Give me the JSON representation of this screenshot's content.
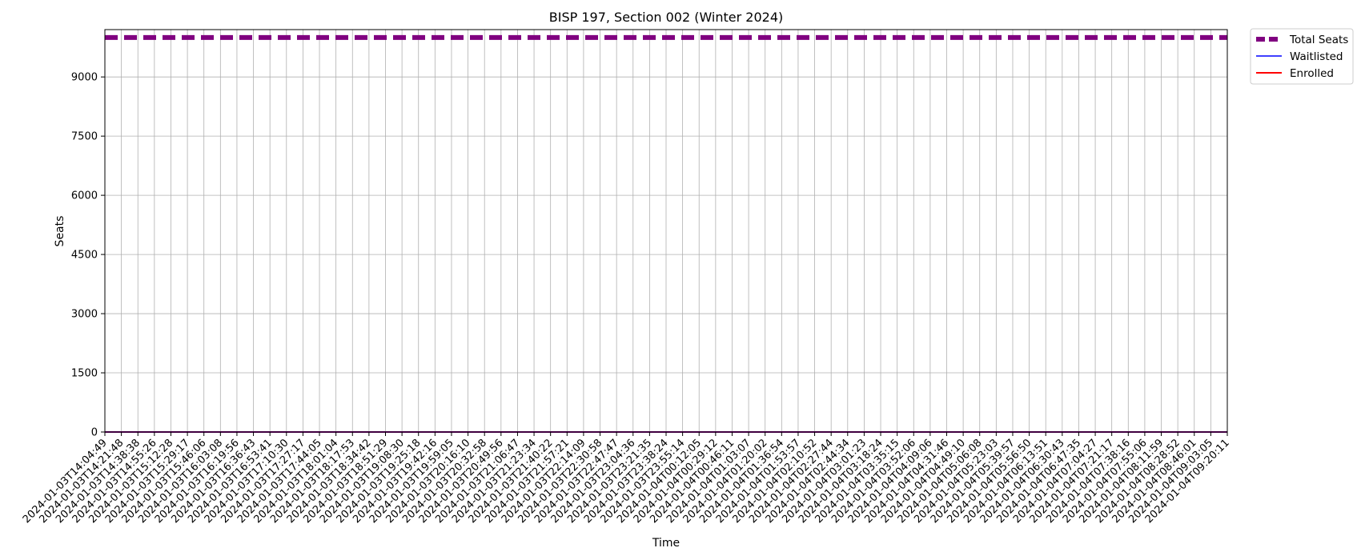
{
  "chart_data": {
    "type": "line",
    "title": "BISP 197, Section 002 (Winter 2024)",
    "xlabel": "Time",
    "ylabel": "Seats",
    "ylim": [
      0,
      10200
    ],
    "yticks": [
      0,
      1500,
      3000,
      4500,
      6000,
      7500,
      9000
    ],
    "grid": true,
    "legend_position": "outside-top-right",
    "x": [
      "2024-01-03T14:04:49",
      "2024-01-03T14:21:48",
      "2024-01-03T14:38:38",
      "2024-01-03T14:55:26",
      "2024-01-03T15:12:28",
      "2024-01-03T15:29:17",
      "2024-01-03T15:46:06",
      "2024-01-03T16:03:08",
      "2024-01-03T16:19:56",
      "2024-01-03T16:36:43",
      "2024-01-03T16:53:41",
      "2024-01-03T17:10:30",
      "2024-01-03T17:27:17",
      "2024-01-03T17:44:05",
      "2024-01-03T18:01:04",
      "2024-01-03T18:17:53",
      "2024-01-03T18:34:42",
      "2024-01-03T18:51:29",
      "2024-01-03T19:08:30",
      "2024-01-03T19:25:18",
      "2024-01-03T19:42:16",
      "2024-01-03T19:59:05",
      "2024-01-03T20:16:10",
      "2024-01-03T20:32:58",
      "2024-01-03T20:49:56",
      "2024-01-03T21:06:47",
      "2024-01-03T21:23:34",
      "2024-01-03T21:40:22",
      "2024-01-03T21:57:21",
      "2024-01-03T22:14:09",
      "2024-01-03T22:30:58",
      "2024-01-03T22:47:47",
      "2024-01-03T23:04:36",
      "2024-01-03T23:21:35",
      "2024-01-03T23:38:24",
      "2024-01-03T23:55:14",
      "2024-01-04T00:12:05",
      "2024-01-04T00:29:12",
      "2024-01-04T00:46:11",
      "2024-01-04T01:03:07",
      "2024-01-04T01:20:02",
      "2024-01-04T01:36:54",
      "2024-01-04T01:53:57",
      "2024-01-04T02:10:52",
      "2024-01-04T02:27:44",
      "2024-01-04T02:44:34",
      "2024-01-04T03:01:23",
      "2024-01-04T03:18:24",
      "2024-01-04T03:35:15",
      "2024-01-04T03:52:06",
      "2024-01-04T04:09:06",
      "2024-01-04T04:31:46",
      "2024-01-04T04:49:10",
      "2024-01-04T05:06:08",
      "2024-01-04T05:23:03",
      "2024-01-04T05:39:57",
      "2024-01-04T05:56:50",
      "2024-01-04T06:13:51",
      "2024-01-04T06:30:43",
      "2024-01-04T06:47:35",
      "2024-01-04T07:04:27",
      "2024-01-04T07:21:17",
      "2024-01-04T07:38:16",
      "2024-01-04T07:55:06",
      "2024-01-04T08:11:59",
      "2024-01-04T08:28:52",
      "2024-01-04T08:46:01",
      "2024-01-04T09:03:05",
      "2024-01-04T09:20:11"
    ],
    "series": [
      {
        "name": "Total Seats",
        "value": 9999,
        "color": "#800080",
        "style": "dashed"
      },
      {
        "name": "Waitlisted",
        "value": 0,
        "color": "#0000ff",
        "style": "solid"
      },
      {
        "name": "Enrolled",
        "value": 0,
        "color": "#ff0000",
        "style": "solid"
      }
    ]
  }
}
